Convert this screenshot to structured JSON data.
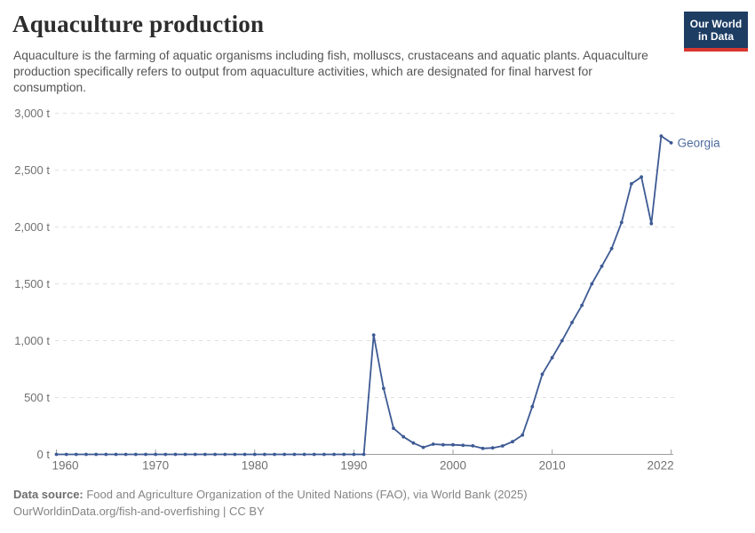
{
  "header": {
    "title": "Aquaculture production",
    "subtitle": "Aquaculture is the farming of aquatic organisms including fish, molluscs, crustaceans and aquatic plants. Aquaculture production specifically refers to output from aquaculture activities, which are designated for final harvest for consumption.",
    "logo": {
      "line1": "Our World",
      "line2": "in Data"
    }
  },
  "footer": {
    "source_label": "Data source:",
    "source_text": " Food and Agriculture Organization of the United Nations (FAO), via World Bank (2025)",
    "license_line": "OurWorldinData.org/fish-and-overfishing | CC BY"
  },
  "colors": {
    "line": "#3d5a94",
    "entity_label": "#4d6b9e",
    "grid": "#e0e0e0",
    "axis_line": "#9e9e9e",
    "tick_text": "#717171",
    "logo_bg": "#1d3d63",
    "logo_red": "#d7372e"
  },
  "chart_data": {
    "type": "line",
    "title": "Aquaculture production",
    "unit": "t",
    "entity_label": "Georgia",
    "grid": true,
    "legend_position": "end-of-line-label",
    "xlim": [
      1960,
      2022
    ],
    "ylim": [
      0,
      3000
    ],
    "xticks": [
      {
        "v": 1960,
        "label": "1960"
      },
      {
        "v": 1970,
        "label": "1970"
      },
      {
        "v": 1980,
        "label": "1980"
      },
      {
        "v": 1990,
        "label": "1990"
      },
      {
        "v": 2000,
        "label": "2000"
      },
      {
        "v": 2010,
        "label": "2010"
      },
      {
        "v": 2022,
        "label": "2022"
      }
    ],
    "yticks": [
      {
        "v": 0,
        "label": "0 t"
      },
      {
        "v": 500,
        "label": "500 t"
      },
      {
        "v": 1000,
        "label": "1,000 t"
      },
      {
        "v": 1500,
        "label": "1,500 t"
      },
      {
        "v": 2000,
        "label": "2,000 t"
      },
      {
        "v": 2500,
        "label": "2,500 t"
      },
      {
        "v": 3000,
        "label": "3,000 t"
      }
    ],
    "series": [
      {
        "name": "Georgia",
        "years": [
          1960,
          1961,
          1962,
          1963,
          1964,
          1965,
          1966,
          1967,
          1968,
          1969,
          1970,
          1971,
          1972,
          1973,
          1974,
          1975,
          1976,
          1977,
          1978,
          1979,
          1980,
          1981,
          1982,
          1983,
          1984,
          1985,
          1986,
          1987,
          1988,
          1989,
          1990,
          1991,
          1992,
          1993,
          1994,
          1995,
          1996,
          1997,
          1998,
          1999,
          2000,
          2001,
          2002,
          2003,
          2004,
          2005,
          2006,
          2007,
          2008,
          2009,
          2010,
          2011,
          2012,
          2013,
          2014,
          2015,
          2016,
          2017,
          2018,
          2019,
          2020,
          2021,
          2022
        ],
        "values": [
          0,
          0,
          0,
          0,
          0,
          0,
          0,
          0,
          0,
          0,
          0,
          0,
          0,
          0,
          0,
          0,
          0,
          0,
          0,
          0,
          0,
          0,
          0,
          0,
          0,
          0,
          0,
          0,
          0,
          0,
          0,
          0,
          1050,
          580,
          230,
          155,
          100,
          62,
          90,
          84,
          84,
          80,
          75,
          52,
          57,
          74,
          112,
          170,
          420,
          705,
          850,
          1000,
          1160,
          1310,
          1500,
          1655,
          1810,
          2040,
          2380,
          2440,
          2030,
          2800,
          2740
        ]
      }
    ]
  }
}
